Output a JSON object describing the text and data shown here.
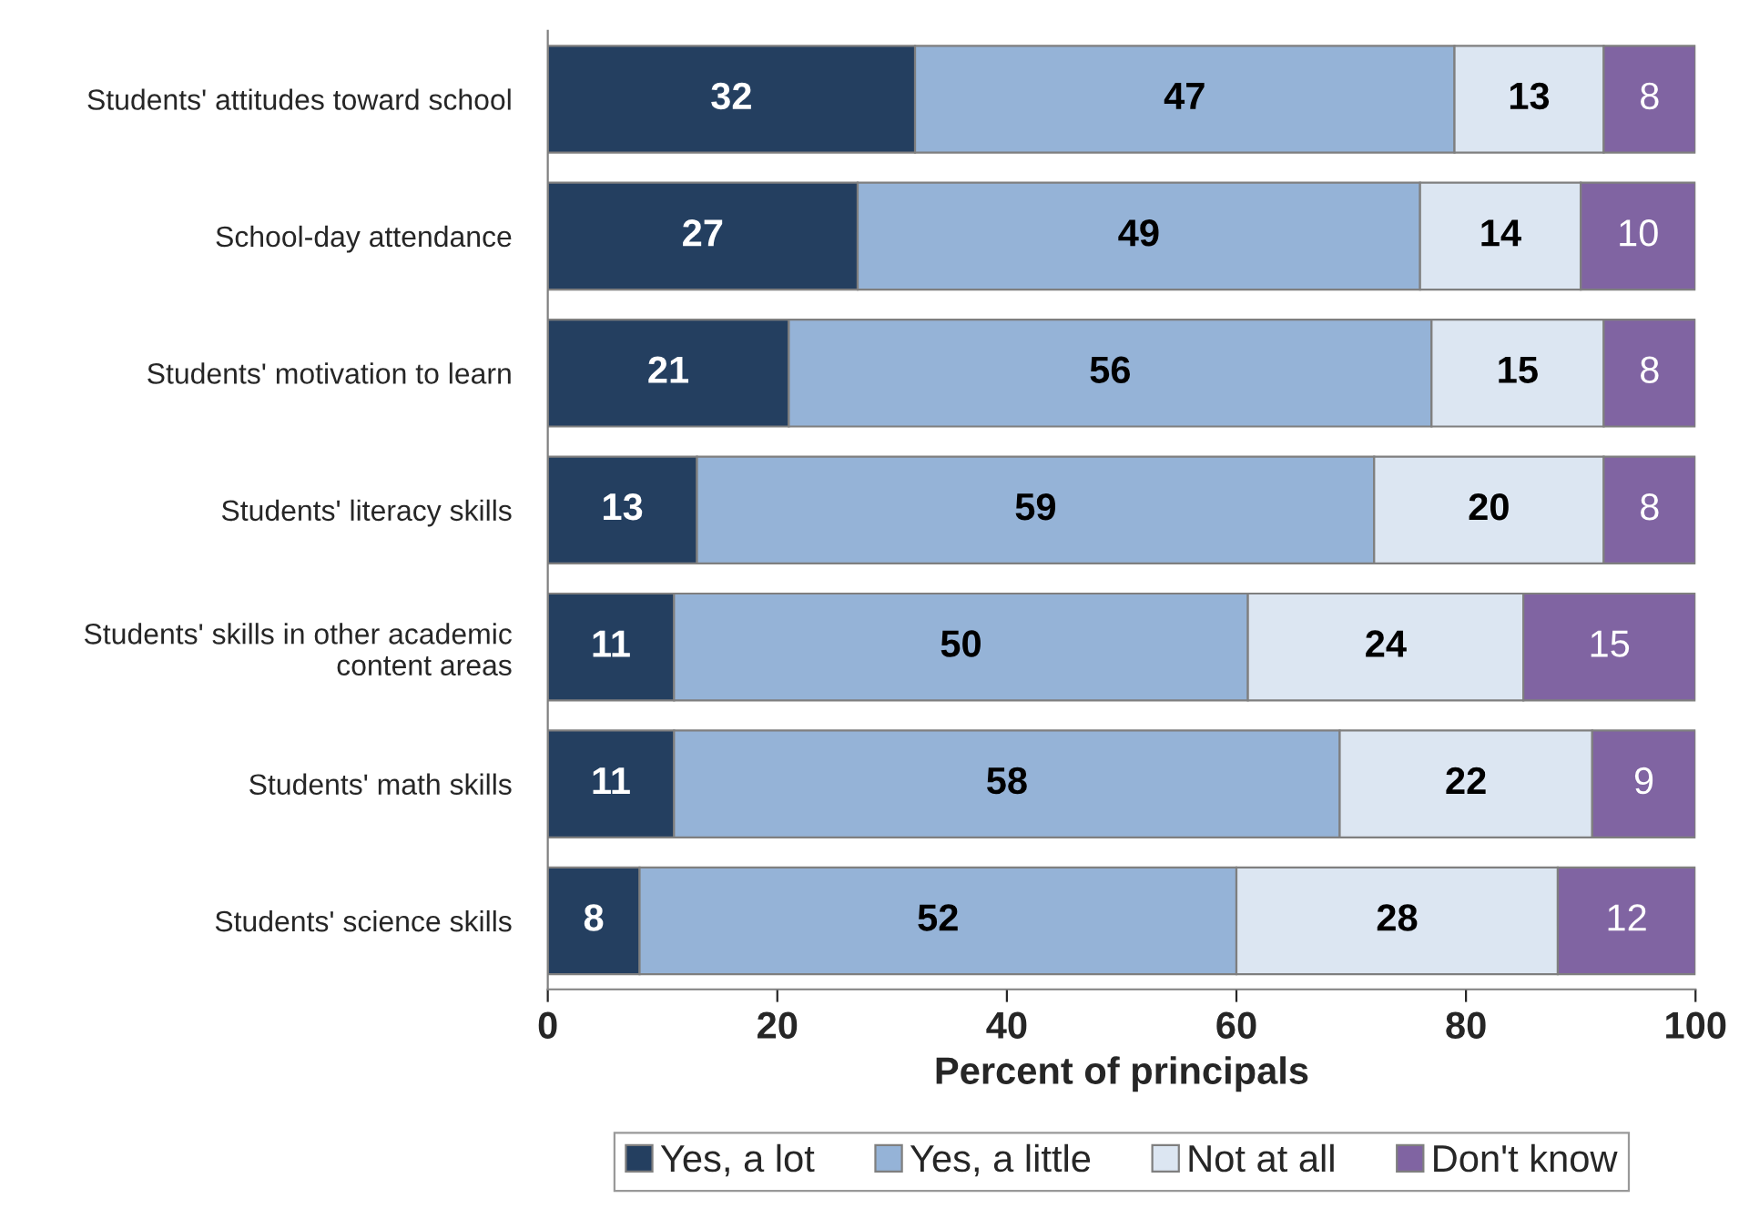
{
  "chart_data": {
    "type": "bar",
    "orientation": "horizontal",
    "stacked": true,
    "data_labels": true,
    "grid": false,
    "legend": "bottom",
    "xlabel": "Percent of principals",
    "categories": [
      "Students' attitudes toward school",
      "School-day attendance",
      "Students' motivation to learn",
      "Students' literacy skills",
      "Students' skills in other academic content areas",
      "Students' math skills",
      "Students' science skills"
    ],
    "series": [
      {
        "name": "Yes, a lot",
        "color": "#243f60",
        "values": [
          32,
          27,
          21,
          13,
          11,
          11,
          8
        ]
      },
      {
        "name": "Yes, a little",
        "color": "#95b3d7",
        "values": [
          47,
          49,
          56,
          59,
          50,
          58,
          52
        ]
      },
      {
        "name": "Not at all",
        "color": "#dce6f2",
        "values": [
          13,
          14,
          15,
          20,
          24,
          22,
          28
        ]
      },
      {
        "name": "Don't know",
        "color": "#8064a2",
        "values": [
          8,
          10,
          8,
          8,
          15,
          9,
          12
        ]
      }
    ],
    "xlim": [
      0,
      100
    ],
    "xticks": [
      0,
      20,
      40,
      60,
      80,
      100
    ]
  }
}
